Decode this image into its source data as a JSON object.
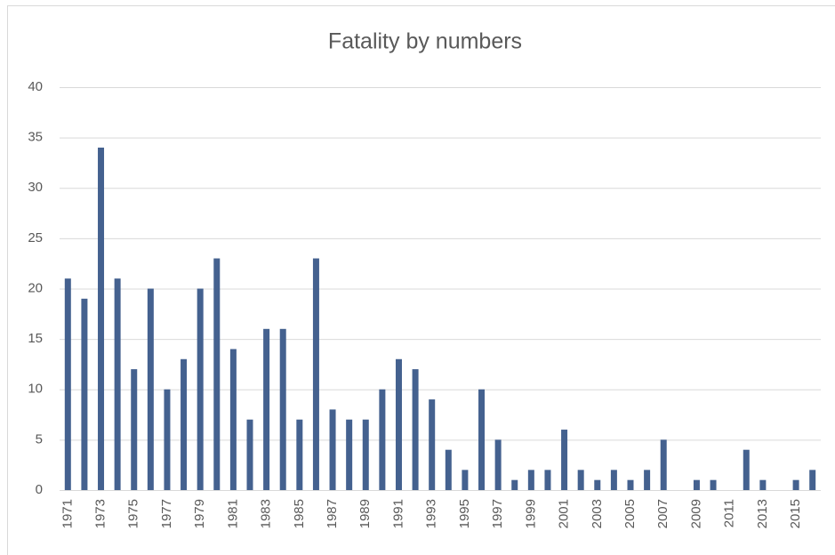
{
  "chart_data": {
    "type": "bar",
    "title": "Fatality by numbers",
    "categories": [
      "1971",
      null,
      "1973",
      null,
      "1975",
      null,
      "1977",
      null,
      "1979",
      null,
      "1981",
      null,
      "1983",
      null,
      "1985",
      null,
      "1987",
      null,
      "1989",
      null,
      "1991",
      null,
      "1993",
      null,
      "1995",
      null,
      "1997",
      null,
      "1999",
      null,
      "2001",
      null,
      "2003",
      null,
      "2005",
      null,
      "2007",
      null,
      "2009",
      null,
      "2011",
      null,
      "2013",
      null,
      "2015",
      null
    ],
    "values": [
      21,
      19,
      34,
      21,
      12,
      20,
      10,
      13,
      20,
      23,
      14,
      7,
      16,
      16,
      7,
      23,
      8,
      7,
      7,
      10,
      13,
      12,
      9,
      4,
      2,
      10,
      5,
      1,
      2,
      2,
      6,
      2,
      1,
      2,
      1,
      2,
      5,
      0,
      1,
      1,
      0,
      4,
      1,
      0,
      1,
      2
    ],
    "color": "#44618f",
    "ylim": [
      0,
      40
    ],
    "yticks": [
      0,
      5,
      10,
      15,
      20,
      25,
      30,
      35,
      40
    ],
    "grid": true
  }
}
